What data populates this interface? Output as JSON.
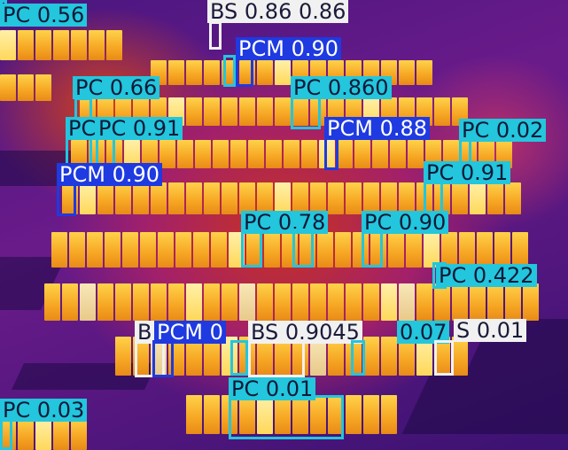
{
  "image": {
    "kind": "thermal aerial photo of a solar panel array with object-detection overlays",
    "palette": {
      "pc": "#23c6dc",
      "pcm": "#1e3ae0",
      "bs": "#f1f1f1",
      "panel_hot": "#ffd24a",
      "background": "#6a1b8a"
    }
  },
  "detections": [
    {
      "id": "d1",
      "cls": "pc",
      "label": "PC 0.56"
    },
    {
      "id": "d2",
      "cls": "bs",
      "label": "BS 0.86 0.86"
    },
    {
      "id": "d3",
      "cls": "pcm",
      "label": "PCM 0.90"
    },
    {
      "id": "d4",
      "cls": "pc",
      "label": "PC 0.66"
    },
    {
      "id": "d5",
      "cls": "pc",
      "label": "PC 0.860"
    },
    {
      "id": "d6",
      "cls": "pc",
      "label": "PC"
    },
    {
      "id": "d7",
      "cls": "pc",
      "label": "PC 0.91"
    },
    {
      "id": "d8",
      "cls": "pcm",
      "label": "PCM 0.88"
    },
    {
      "id": "d9",
      "cls": "pc",
      "label": "PC 0.02"
    },
    {
      "id": "d10",
      "cls": "pcm",
      "label": "PCM 0.90"
    },
    {
      "id": "d11",
      "cls": "pc",
      "label": "PC 0.91"
    },
    {
      "id": "d12",
      "cls": "pc",
      "label": "PC 0.78"
    },
    {
      "id": "d13",
      "cls": "pc",
      "label": "PC 0.90"
    },
    {
      "id": "d14",
      "cls": "pc",
      "label": "PC 0.422"
    },
    {
      "id": "d15",
      "cls": "bs",
      "label": "B"
    },
    {
      "id": "d16",
      "cls": "pcm",
      "label": "PCM 0"
    },
    {
      "id": "d17",
      "cls": "bs",
      "label": "BS 0.9045"
    },
    {
      "id": "d18",
      "cls": "pc",
      "label": "0.07"
    },
    {
      "id": "d19",
      "cls": "bs",
      "label": "S 0.01"
    },
    {
      "id": "d20",
      "cls": "pc",
      "label": "PC 0.01"
    },
    {
      "id": "d21",
      "cls": "pc",
      "label": "PC 0.03"
    }
  ]
}
